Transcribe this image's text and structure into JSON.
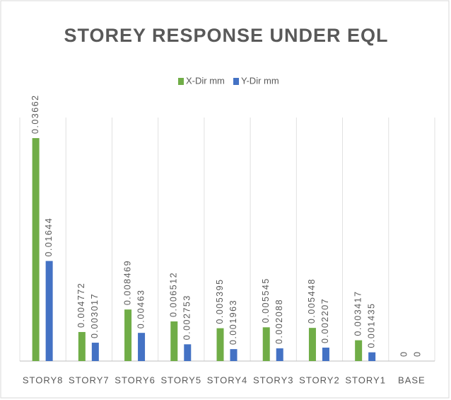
{
  "chart_data": {
    "type": "bar",
    "title": "STOREY RESPONSE UNDER EQL",
    "categories": [
      "STORY8",
      "STORY7",
      "STORY6",
      "STORY5",
      "STORY4",
      "STORY3",
      "STORY2",
      "STORY1",
      "BASE"
    ],
    "series": [
      {
        "name": "X-Dir mm",
        "color": "#70ad47",
        "values": [
          0.03662,
          0.004772,
          0.008469,
          0.006512,
          0.005395,
          0.005545,
          0.005448,
          0.003417,
          0
        ]
      },
      {
        "name": "Y-Dir mm",
        "color": "#4472c4",
        "values": [
          0.01644,
          0.003017,
          0.00463,
          0.002753,
          0.001963,
          0.002088,
          0.002207,
          0.001435,
          0
        ]
      }
    ],
    "ylim": [
      0,
      0.04
    ],
    "legend": "top"
  }
}
